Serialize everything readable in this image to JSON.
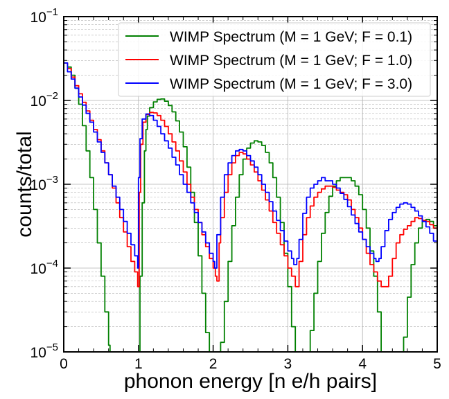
{
  "chart_data": {
    "type": "line",
    "title": "",
    "xlabel": "phonon energy [n e/h pairs]",
    "ylabel": "counts/total",
    "xlim": [
      0,
      5
    ],
    "ylim": [
      1e-05,
      0.1
    ],
    "yscale": "log",
    "grid": true,
    "legend_position": "top-right",
    "x_ticks": [
      "0",
      "1",
      "2",
      "3",
      "4",
      "5"
    ],
    "y_ticks": [
      {
        "base": "10",
        "exp": "−5"
      },
      {
        "base": "10",
        "exp": "−4"
      },
      {
        "base": "10",
        "exp": "−3"
      },
      {
        "base": "10",
        "exp": "−2"
      },
      {
        "base": "10",
        "exp": "−1"
      }
    ],
    "series": [
      {
        "name": "WIMP Spectrum (M = 1 GeV; F = 0.1)",
        "color": "#008000",
        "x": [
          0,
          0.05,
          0.1,
          0.15,
          0.2,
          0.25,
          0.3,
          0.35,
          0.4,
          0.45,
          0.5,
          0.55,
          0.6,
          0.62,
          0.99,
          1.02,
          1.05,
          1.08,
          1.1,
          1.12,
          1.15,
          1.2,
          1.25,
          1.3,
          1.35,
          1.4,
          1.45,
          1.5,
          1.55,
          1.6,
          1.65,
          1.7,
          1.75,
          1.8,
          1.85,
          1.9,
          1.95,
          2.0,
          2.05,
          2.1,
          2.15,
          2.2,
          2.25,
          2.3,
          2.35,
          2.4,
          2.45,
          2.5,
          2.55,
          2.6,
          2.65,
          2.7,
          2.75,
          2.8,
          2.85,
          2.9,
          2.95,
          3.0,
          3.05,
          3.1,
          3.15,
          3.2,
          3.25,
          3.3,
          3.35,
          3.4,
          3.45,
          3.5,
          3.55,
          3.6,
          3.65,
          3.7,
          3.75,
          3.8,
          3.85,
          3.9,
          3.95,
          4.0,
          4.05,
          4.1,
          4.15,
          4.2,
          4.25,
          4.5,
          4.55,
          4.6,
          4.65,
          4.7,
          4.75,
          4.8,
          4.85,
          4.9,
          4.95,
          5.0
        ],
        "y": [
          0.028,
          0.025,
          0.02,
          0.014,
          0.009,
          0.005,
          0.0025,
          0.0012,
          0.0005,
          0.0002,
          8e-05,
          3e-05,
          1.2e-05,
          1e-05,
          1e-05,
          8e-05,
          0.0006,
          0.0025,
          0.0045,
          0.0065,
          0.0082,
          0.0096,
          0.0103,
          0.0104,
          0.0098,
          0.0087,
          0.0073,
          0.0057,
          0.0042,
          0.0028,
          0.0016,
          0.0008,
          0.00035,
          0.00014,
          5e-05,
          1.7e-05,
          1e-05,
          1e-05,
          1e-05,
          1.3e-05,
          4e-05,
          0.00012,
          0.00032,
          0.0007,
          0.0013,
          0.002,
          0.0027,
          0.0031,
          0.0033,
          0.0032,
          0.0029,
          0.0024,
          0.0018,
          0.0012,
          0.0007,
          0.00035,
          0.00015,
          6e-05,
          2e-05,
          1e-05,
          1e-05,
          1e-05,
          1e-05,
          1.8e-05,
          5e-05,
          0.00012,
          0.00026,
          0.00046,
          0.00072,
          0.00095,
          0.0011,
          0.0012,
          0.0012,
          0.0012,
          0.0011,
          0.00095,
          0.00075,
          0.0005,
          0.0003,
          0.00016,
          8e-05,
          3e-05,
          1e-05,
          1e-05,
          1.5e-05,
          4.5e-05,
          0.00011,
          0.0002,
          0.0003,
          0.00036,
          0.00038,
          0.00036,
          0.00032,
          0.00028
        ]
      },
      {
        "name": "WIMP Spectrum (M = 1 GeV; F = 1.0)",
        "color": "#ff0000",
        "x": [
          0,
          0.05,
          0.1,
          0.15,
          0.2,
          0.25,
          0.3,
          0.35,
          0.4,
          0.45,
          0.5,
          0.55,
          0.6,
          0.65,
          0.7,
          0.75,
          0.8,
          0.85,
          0.9,
          0.95,
          0.99,
          1.01,
          1.03,
          1.06,
          1.1,
          1.15,
          1.2,
          1.25,
          1.3,
          1.35,
          1.4,
          1.45,
          1.5,
          1.55,
          1.6,
          1.65,
          1.7,
          1.75,
          1.8,
          1.85,
          1.9,
          1.95,
          2.0,
          2.03,
          2.05,
          2.08,
          2.1,
          2.15,
          2.2,
          2.25,
          2.3,
          2.35,
          2.4,
          2.45,
          2.5,
          2.55,
          2.6,
          2.65,
          2.7,
          2.75,
          2.8,
          2.85,
          2.9,
          2.95,
          3.0,
          3.05,
          3.1,
          3.12,
          3.15,
          3.2,
          3.25,
          3.3,
          3.35,
          3.4,
          3.45,
          3.5,
          3.55,
          3.6,
          3.65,
          3.7,
          3.75,
          3.8,
          3.85,
          3.9,
          3.95,
          4.0,
          4.05,
          4.1,
          4.15,
          4.2,
          4.25,
          4.3,
          4.35,
          4.4,
          4.45,
          4.5,
          4.55,
          4.6,
          4.65,
          4.7,
          4.75,
          4.8,
          4.85,
          4.9,
          4.95,
          5.0
        ],
        "y": [
          0.028,
          0.024,
          0.019,
          0.015,
          0.012,
          0.0095,
          0.0075,
          0.0058,
          0.0045,
          0.0034,
          0.0025,
          0.0018,
          0.0013,
          0.0009,
          0.0006,
          0.0004,
          0.00027,
          0.00018,
          0.00012,
          9e-05,
          6e-05,
          0.0008,
          0.003,
          0.0055,
          0.0068,
          0.0072,
          0.0071,
          0.0066,
          0.0058,
          0.0049,
          0.004,
          0.0032,
          0.0025,
          0.0019,
          0.0014,
          0.001,
          0.0007,
          0.0005,
          0.00035,
          0.00025,
          0.00018,
          0.00013,
          0.0001,
          8e-05,
          7e-05,
          0.0002,
          0.0004,
          0.0008,
          0.0013,
          0.0018,
          0.0022,
          0.0024,
          0.0023,
          0.002,
          0.0017,
          0.0014,
          0.0011,
          0.00085,
          0.00065,
          0.00048,
          0.00035,
          0.00026,
          0.00019,
          0.00014,
          0.0001,
          8e-05,
          6e-05,
          6e-05,
          0.00012,
          0.00025,
          0.0004,
          0.00055,
          0.0007,
          0.0008,
          0.00088,
          0.00095,
          0.00095,
          0.00092,
          0.00085,
          0.0008,
          0.00075,
          0.00065,
          0.0005,
          0.0004,
          0.0003,
          0.00022,
          0.00015,
          0.00011,
          9e-05,
          7e-05,
          6e-05,
          6e-05,
          8e-05,
          0.00013,
          0.0002,
          0.00025,
          0.00029,
          0.00032,
          0.00036,
          0.0004,
          0.00039,
          0.00037,
          0.00036,
          0.00033,
          0.0003,
          0.00028
        ]
      },
      {
        "name": "WIMP Spectrum (M = 1 GeV; F = 3.0)",
        "color": "#0000ff",
        "x": [
          0,
          0.05,
          0.1,
          0.15,
          0.2,
          0.25,
          0.3,
          0.35,
          0.4,
          0.45,
          0.5,
          0.55,
          0.6,
          0.65,
          0.7,
          0.75,
          0.8,
          0.85,
          0.9,
          0.95,
          0.99,
          1.0,
          1.02,
          1.05,
          1.1,
          1.15,
          1.2,
          1.25,
          1.3,
          1.35,
          1.4,
          1.45,
          1.5,
          1.55,
          1.6,
          1.65,
          1.7,
          1.75,
          1.8,
          1.85,
          1.9,
          1.95,
          2.0,
          2.02,
          2.05,
          2.1,
          2.15,
          2.2,
          2.25,
          2.3,
          2.35,
          2.4,
          2.45,
          2.5,
          2.55,
          2.6,
          2.65,
          2.7,
          2.75,
          2.8,
          2.85,
          2.9,
          2.95,
          3.0,
          3.05,
          3.08,
          3.12,
          3.15,
          3.2,
          3.25,
          3.3,
          3.35,
          3.4,
          3.45,
          3.5,
          3.55,
          3.6,
          3.65,
          3.7,
          3.75,
          3.8,
          3.85,
          3.9,
          3.95,
          4.0,
          4.05,
          4.1,
          4.15,
          4.18,
          4.22,
          4.25,
          4.3,
          4.35,
          4.4,
          4.45,
          4.5,
          4.55,
          4.6,
          4.65,
          4.7,
          4.75,
          4.8,
          4.85,
          4.9,
          4.95,
          5.0
        ],
        "y": [
          0.028,
          0.022,
          0.018,
          0.014,
          0.011,
          0.0088,
          0.007,
          0.0055,
          0.0042,
          0.0032,
          0.0024,
          0.0018,
          0.0013,
          0.00095,
          0.0007,
          0.0005,
          0.00036,
          0.00026,
          0.00019,
          0.00014,
          0.0001,
          0.0012,
          0.0035,
          0.006,
          0.0069,
          0.0066,
          0.0058,
          0.0049,
          0.004,
          0.0033,
          0.0027,
          0.0021,
          0.0017,
          0.0013,
          0.001,
          0.0008,
          0.0006,
          0.00046,
          0.00035,
          0.00027,
          0.0002,
          0.00015,
          0.00012,
          0.0001,
          0.00025,
          0.0007,
          0.0013,
          0.0018,
          0.0022,
          0.0025,
          0.0026,
          0.0025,
          0.0022,
          0.0019,
          0.0016,
          0.0013,
          0.001,
          0.0008,
          0.00062,
          0.00048,
          0.00037,
          0.00028,
          0.00021,
          0.00016,
          0.00013,
          0.00011,
          0.00013,
          0.00022,
          0.00045,
          0.0007,
          0.0009,
          0.001,
          0.0011,
          0.0012,
          0.0011,
          0.0011,
          0.001,
          0.0009,
          0.00078,
          0.00066,
          0.00054,
          0.00043,
          0.00034,
          0.00027,
          0.00022,
          0.00018,
          0.00015,
          0.00013,
          0.00012,
          0.00013,
          0.00018,
          0.00028,
          0.00038,
          0.00046,
          0.00053,
          0.00058,
          0.0006,
          0.00058,
          0.00053,
          0.00048,
          0.00042,
          0.00036,
          0.00031,
          0.00026,
          0.00021,
          0.00018
        ]
      }
    ]
  }
}
